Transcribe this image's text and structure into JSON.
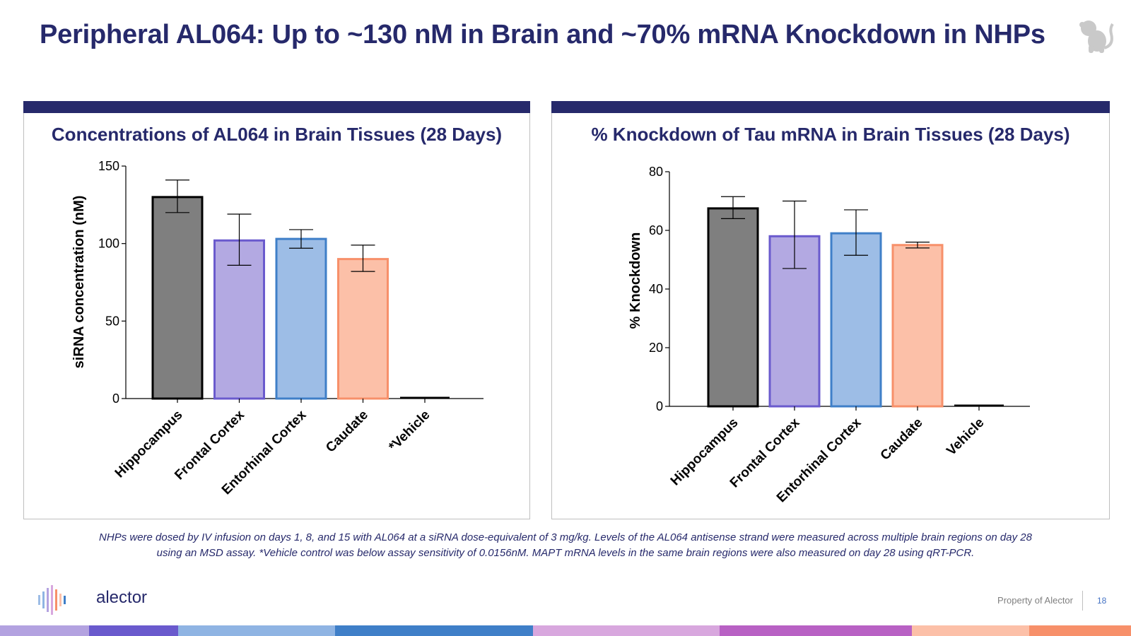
{
  "title": "Peripheral AL064: Up to ~130 nM in Brain and ~70% mRNA Knockdown in NHPs",
  "chart_data": [
    {
      "type": "bar",
      "title": "Concentrations of AL064 in Brain Tissues (28 Days)",
      "ylabel": "siRNA concentration  (nM)",
      "xlabel": "",
      "ylim": [
        0,
        150
      ],
      "yticks": [
        "0",
        "50",
        "100",
        "150"
      ],
      "categories": [
        "Hippocampus",
        "Frontal Cortex",
        "Entorhinal Cortex",
        "Caudate",
        "*Vehicle"
      ],
      "values": [
        130,
        102,
        103,
        90,
        0.5
      ],
      "error_low": [
        120,
        86,
        97,
        82,
        null
      ],
      "error_high": [
        141,
        119,
        109,
        99,
        null
      ],
      "colors": [
        "#7f7f7f",
        "#b3a9e2",
        "#9dbde6",
        "#fcc0a8",
        "#000000"
      ],
      "edge_colors": [
        "#000000",
        "#6a5acd",
        "#3f7fc8",
        "#f7906a",
        "#000000"
      ],
      "grid": false
    },
    {
      "type": "bar",
      "title": "% Knockdown of Tau mRNA in Brain Tissues (28 Days)",
      "ylabel": "% Knockdown",
      "xlabel": "",
      "ylim": [
        0,
        80
      ],
      "yticks": [
        "0",
        "20",
        "40",
        "60",
        "80"
      ],
      "categories": [
        "Hippocampus",
        "Frontal Cortex",
        "Entorhinal Cortex",
        "Caudate",
        "Vehicle"
      ],
      "values": [
        67.5,
        58,
        59,
        55,
        0.3
      ],
      "error_low": [
        64,
        47,
        51.5,
        54,
        null
      ],
      "error_high": [
        71.5,
        70,
        67,
        56,
        null
      ],
      "colors": [
        "#7f7f7f",
        "#b3a9e2",
        "#9dbde6",
        "#fcc0a8",
        "#000000"
      ],
      "edge_colors": [
        "#000000",
        "#6a5acd",
        "#3f7fc8",
        "#f7906a",
        "#000000"
      ],
      "grid": false
    }
  ],
  "footnote_line1": "NHPs were dosed by IV infusion on days 1, 8, and 15 with AL064 at a siRNA dose-equivalent of 3 mg/kg. Levels of the AL064 antisense strand were measured across multiple brain regions on day 28",
  "footnote_line2": "using an MSD assay. *Vehicle control was below assay sensitivity of 0.0156nM. MAPT mRNA levels in the same brain regions were also measured on day 28 using qRT-PCR.",
  "logo_text": "alector",
  "owner_text": "Property of Alector",
  "page_number": "18",
  "icons": {
    "corner": "monkey-icon",
    "logo": "alector-logo-icon"
  },
  "stripe_colors": [
    "#b3a2e0",
    "#6a5acd",
    "#8fb4e3",
    "#3f7fc8",
    "#d8a7de",
    "#b861c4",
    "#fcc0a8",
    "#f7906a"
  ],
  "brand_color": "#26296b"
}
